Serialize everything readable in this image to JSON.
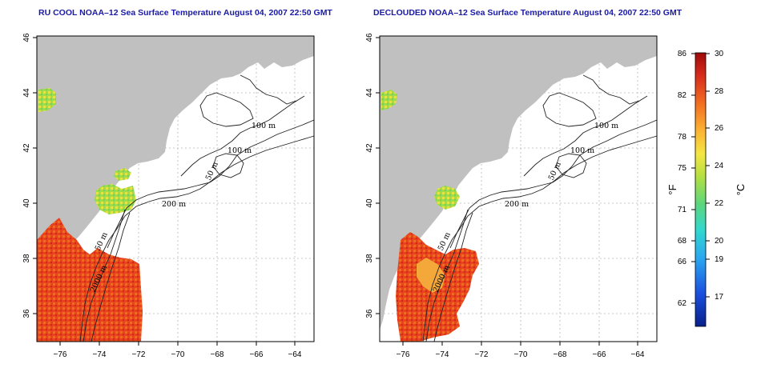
{
  "panels": [
    {
      "title": "RU COOL NOAA–12 Sea Surface Temperature August 04, 2007 22:50 GMT",
      "contour_labels": [
        "100 m",
        "100 m",
        "50 m",
        "200 m",
        "50 m",
        "2000 m"
      ],
      "lon_ticks": [
        "−76",
        "−74",
        "−72",
        "−70",
        "−68",
        "−66",
        "−64"
      ],
      "lat_ticks": [
        "46",
        "44",
        "42",
        "40",
        "38",
        "36"
      ]
    },
    {
      "title": "DECLOUDED NOAA–12 Sea Surface Temperature August 04, 2007 22:50 GMT",
      "contour_labels": [
        "100 m",
        "100 m",
        "50 m",
        "200 m",
        "50 m",
        "2000 m"
      ],
      "lon_ticks": [
        "−76",
        "−74",
        "−72",
        "−70",
        "−68",
        "−66",
        "−64"
      ],
      "lat_ticks": [
        "46",
        "44",
        "42",
        "40",
        "38",
        "36"
      ]
    }
  ],
  "colorbar": {
    "fahrenheit_unit": "°F",
    "celsius_unit": "°C",
    "fahrenheit_ticks": [
      "86",
      "82",
      "78",
      "75",
      "71",
      "68",
      "66",
      "62"
    ],
    "celsius_ticks": [
      "30",
      "28",
      "26",
      "24",
      "22",
      "20",
      "19",
      "17"
    ]
  },
  "colors": {
    "land": "#c0c0c0",
    "title": "#1a1aa6",
    "sst_hot": "#d7301f",
    "sst_warm": "#fc8d30",
    "sst_mid": "#f5e642",
    "sst_cool": "#7fd34e"
  }
}
